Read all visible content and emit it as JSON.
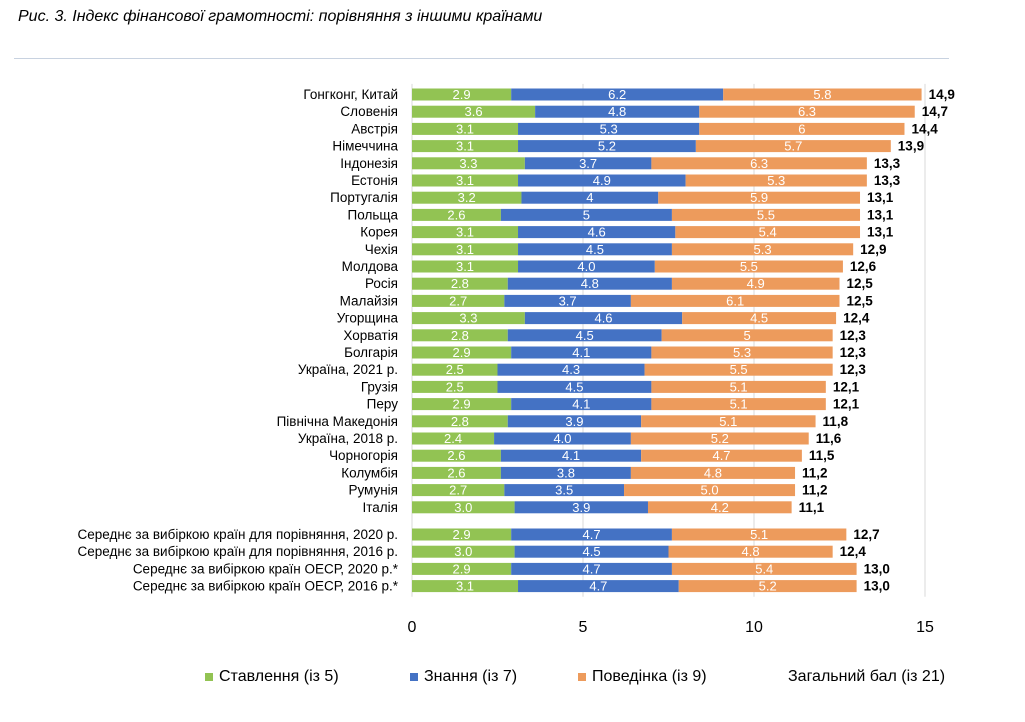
{
  "title": "Рис. 3. Індекс фінансової грамотності: порівняння з іншими країнами",
  "colors": {
    "stavlennia": "#92c353",
    "znannia": "#4472c4",
    "povedinka": "#ed9b5c",
    "grid": "#d9d9d9"
  },
  "chart_data": {
    "type": "bar",
    "orientation": "horizontal",
    "stacked": true,
    "xlim": [
      0,
      15
    ],
    "xticks": [
      "0",
      "5",
      "10",
      "15"
    ],
    "categories": [
      "Гонгконг, Китай",
      "Словенія",
      "Австрія",
      "Німеччина",
      "Індонезія",
      "Естонія",
      "Португалія",
      "Польща",
      "Корея",
      "Чехія",
      "Молдова",
      "Росія",
      "Малайзія",
      "Угорщина",
      "Хорватія",
      "Болгарія",
      "Україна, 2021 р.",
      "Грузія",
      "Перу",
      "Північна Македонія",
      "Україна, 2018 р.",
      "Чорногорія",
      "Колумбія",
      "Румунія",
      "Італія",
      "Середнє за вибіркою країн для порівняння, 2020 р.",
      "Середнє за вибіркою країн для порівняння, 2016 р.",
      "Середнє за вибіркою країн ОЕСР, 2020 р.*",
      "Середнє за вибіркою країн ОЕСР, 2016 р.*"
    ],
    "group_break_after": 24,
    "series": [
      {
        "name": "Ставлення (із 5)",
        "color_key": "stavlennia",
        "values": [
          2.9,
          3.6,
          3.1,
          3.1,
          3.3,
          3.1,
          3.2,
          2.6,
          3.1,
          3.1,
          3.1,
          2.8,
          2.7,
          3.3,
          2.8,
          2.9,
          2.5,
          2.5,
          2.9,
          2.8,
          2.4,
          2.6,
          2.6,
          2.7,
          3.0,
          2.9,
          3.0,
          2.9,
          3.1
        ],
        "labels": [
          "2.9",
          "3.6",
          "3.1",
          "3.1",
          "3.3",
          "3.1",
          "3.2",
          "2.6",
          "3.1",
          "3.1",
          "3.1",
          "2.8",
          "2.7",
          "3.3",
          "2.8",
          "2.9",
          "2.5",
          "2.5",
          "2.9",
          "2.8",
          "2.4",
          "2.6",
          "2.6",
          "2.7",
          "3.0",
          "2.9",
          "3.0",
          "2.9",
          "3.1"
        ]
      },
      {
        "name": "Знання (із 7)",
        "color_key": "znannia",
        "values": [
          6.2,
          4.8,
          5.3,
          5.2,
          3.7,
          4.9,
          4.0,
          5.0,
          4.6,
          4.5,
          4.0,
          4.8,
          3.7,
          4.6,
          4.5,
          4.1,
          4.3,
          4.5,
          4.1,
          3.9,
          4.0,
          4.1,
          3.8,
          3.5,
          3.9,
          4.7,
          4.5,
          4.7,
          4.7
        ],
        "labels": [
          "6.2",
          "4.8",
          "5.3",
          "5.2",
          "3.7",
          "4.9",
          "4",
          "5",
          "4.6",
          "4.5",
          "4.0",
          "4.8",
          "3.7",
          "4.6",
          "4.5",
          "4.1",
          "4.3",
          "4.5",
          "4.1",
          "3.9",
          "4.0",
          "4.1",
          "3.8",
          "3.5",
          "3.9",
          "4.7",
          "4.5",
          "4.7",
          "4.7"
        ]
      },
      {
        "name": "Поведінка (із 9)",
        "color_key": "povedinka",
        "values": [
          5.8,
          6.3,
          6.0,
          5.7,
          6.3,
          5.3,
          5.9,
          5.5,
          5.4,
          5.3,
          5.5,
          4.9,
          6.1,
          4.5,
          5.0,
          5.3,
          5.5,
          5.1,
          5.1,
          5.1,
          5.2,
          4.7,
          4.8,
          5.0,
          4.2,
          5.1,
          4.8,
          5.4,
          5.2
        ],
        "labels": [
          "5.8",
          "6.3",
          "6",
          "5.7",
          "6.3",
          "5.3",
          "5.9",
          "5.5",
          "5.4",
          "5.3",
          "5.5",
          "4.9",
          "6.1",
          "4.5",
          "5",
          "5.3",
          "5.5",
          "5.1",
          "5.1",
          "5.1",
          "5.2",
          "4.7",
          "4.8",
          "5.0",
          "4.2",
          "5.1",
          "4.8",
          "5.4",
          "5.2"
        ]
      }
    ],
    "totals": {
      "name": "Загальний бал (із 21)",
      "labels": [
        "14,9",
        "14,7",
        "14,4",
        "13,9",
        "13,3",
        "13,3",
        "13,1",
        "13,1",
        "13,1",
        "12,9",
        "12,6",
        "12,5",
        "12,5",
        "12,4",
        "12,3",
        "12,3",
        "12,3",
        "12,1",
        "12,1",
        "11,8",
        "11,6",
        "11,5",
        "11,2",
        "11,2",
        "11,1",
        "12,7",
        "12,4",
        "13,0",
        "13,0"
      ]
    },
    "legend_position": "bottom"
  }
}
